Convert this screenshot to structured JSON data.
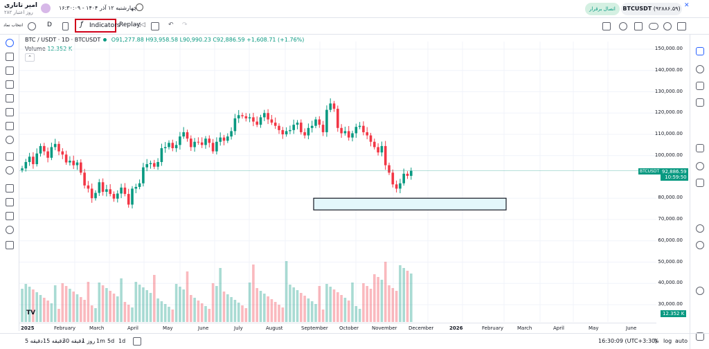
{
  "header": {
    "user_name": "امیر تاتاری",
    "user_sub": "۲۸۲ روز اعتبار",
    "datetime": "چهارشنبه ۱۲ آذر ۱۴۰۴ - ۱۶:۳۰:۰۹",
    "connect_label": "اتصال برقرار",
    "symbol": "BTCUSDT",
    "symbol_price": "(۹۲۸۸۶.۵۹)"
  },
  "toolbar": {
    "account_label": "انتخاب نماد",
    "interval": "D",
    "indicators_label": "Indicators",
    "replay_label": "Replay"
  },
  "legend": {
    "symbol": "BTC / USDT · 1D · BTCUSDT",
    "ohlc": "O91,277.88 H93,958.58 L90,990.23 C92,886.59 +1,608.71 (+1.76%)",
    "volume_label": "Volume",
    "volume_value": "12.352 K"
  },
  "price_axis": {
    "labels": [
      "150,000.00",
      "140,000.00",
      "130,000.00",
      "120,000.00",
      "110,000.00",
      "100,000.00",
      "80,000.00",
      "70,000.00",
      "60,000.00",
      "50,000.00",
      "40,000.00",
      "30,000.00"
    ],
    "current_tag_symbol": "BTCUSDT",
    "current_price": "92,886.59",
    "countdown": "10:59:50",
    "volume_tag": "12.352 K"
  },
  "time_axis": {
    "labels": [
      "2025",
      "February",
      "March",
      "April",
      "May",
      "June",
      "July",
      "August",
      "September",
      "October",
      "November",
      "December",
      "2026",
      "February",
      "March",
      "April",
      "May",
      "June"
    ]
  },
  "bottom": {
    "ranges": [
      "5 دقیقه",
      "15 دقیقه",
      "30 دقیقه",
      "1 روز",
      "1m",
      "5d",
      "1d"
    ],
    "time": "16:30:09 (UTC+3:30)",
    "percent": "%",
    "log": "log",
    "auto": "auto"
  },
  "colors": {
    "up": "#089981",
    "down": "#f23645",
    "rect": "#e3f6fb"
  },
  "chart_data": {
    "type": "candlestick",
    "ylim": [
      25000,
      155000
    ],
    "closes": [
      94000,
      97000,
      99500,
      96000,
      101000,
      104500,
      102000,
      99000,
      104000,
      105500,
      102000,
      100500,
      96800,
      97600,
      95500,
      96800,
      92000,
      86000,
      84500,
      80000,
      82500,
      87500,
      83000,
      84200,
      82000,
      79800,
      82200,
      85000,
      82000,
      77000,
      84500,
      85300,
      87000,
      94500,
      96000,
      96500,
      94800,
      97000,
      103500,
      104000,
      106000,
      103500,
      105000,
      109000,
      111000,
      108000,
      104000,
      106500,
      106200,
      105000,
      108000,
      106000,
      102000,
      106500,
      108500,
      107000,
      109000,
      111500,
      117500,
      119000,
      118500,
      117500,
      118000,
      116000,
      114500,
      118000,
      120000,
      117000,
      115500,
      114000,
      112000,
      110000,
      111500,
      112000,
      114500,
      115500,
      111000,
      109500,
      113000,
      114000,
      117000,
      114500,
      111000,
      121500,
      124500,
      122000,
      113000,
      110500,
      111500,
      108500,
      110500,
      113500,
      114000,
      111000,
      109500,
      106500,
      104000,
      101500,
      104500,
      95500,
      92000,
      86500,
      84500,
      87000,
      91500,
      90500,
      92886
    ]
  }
}
